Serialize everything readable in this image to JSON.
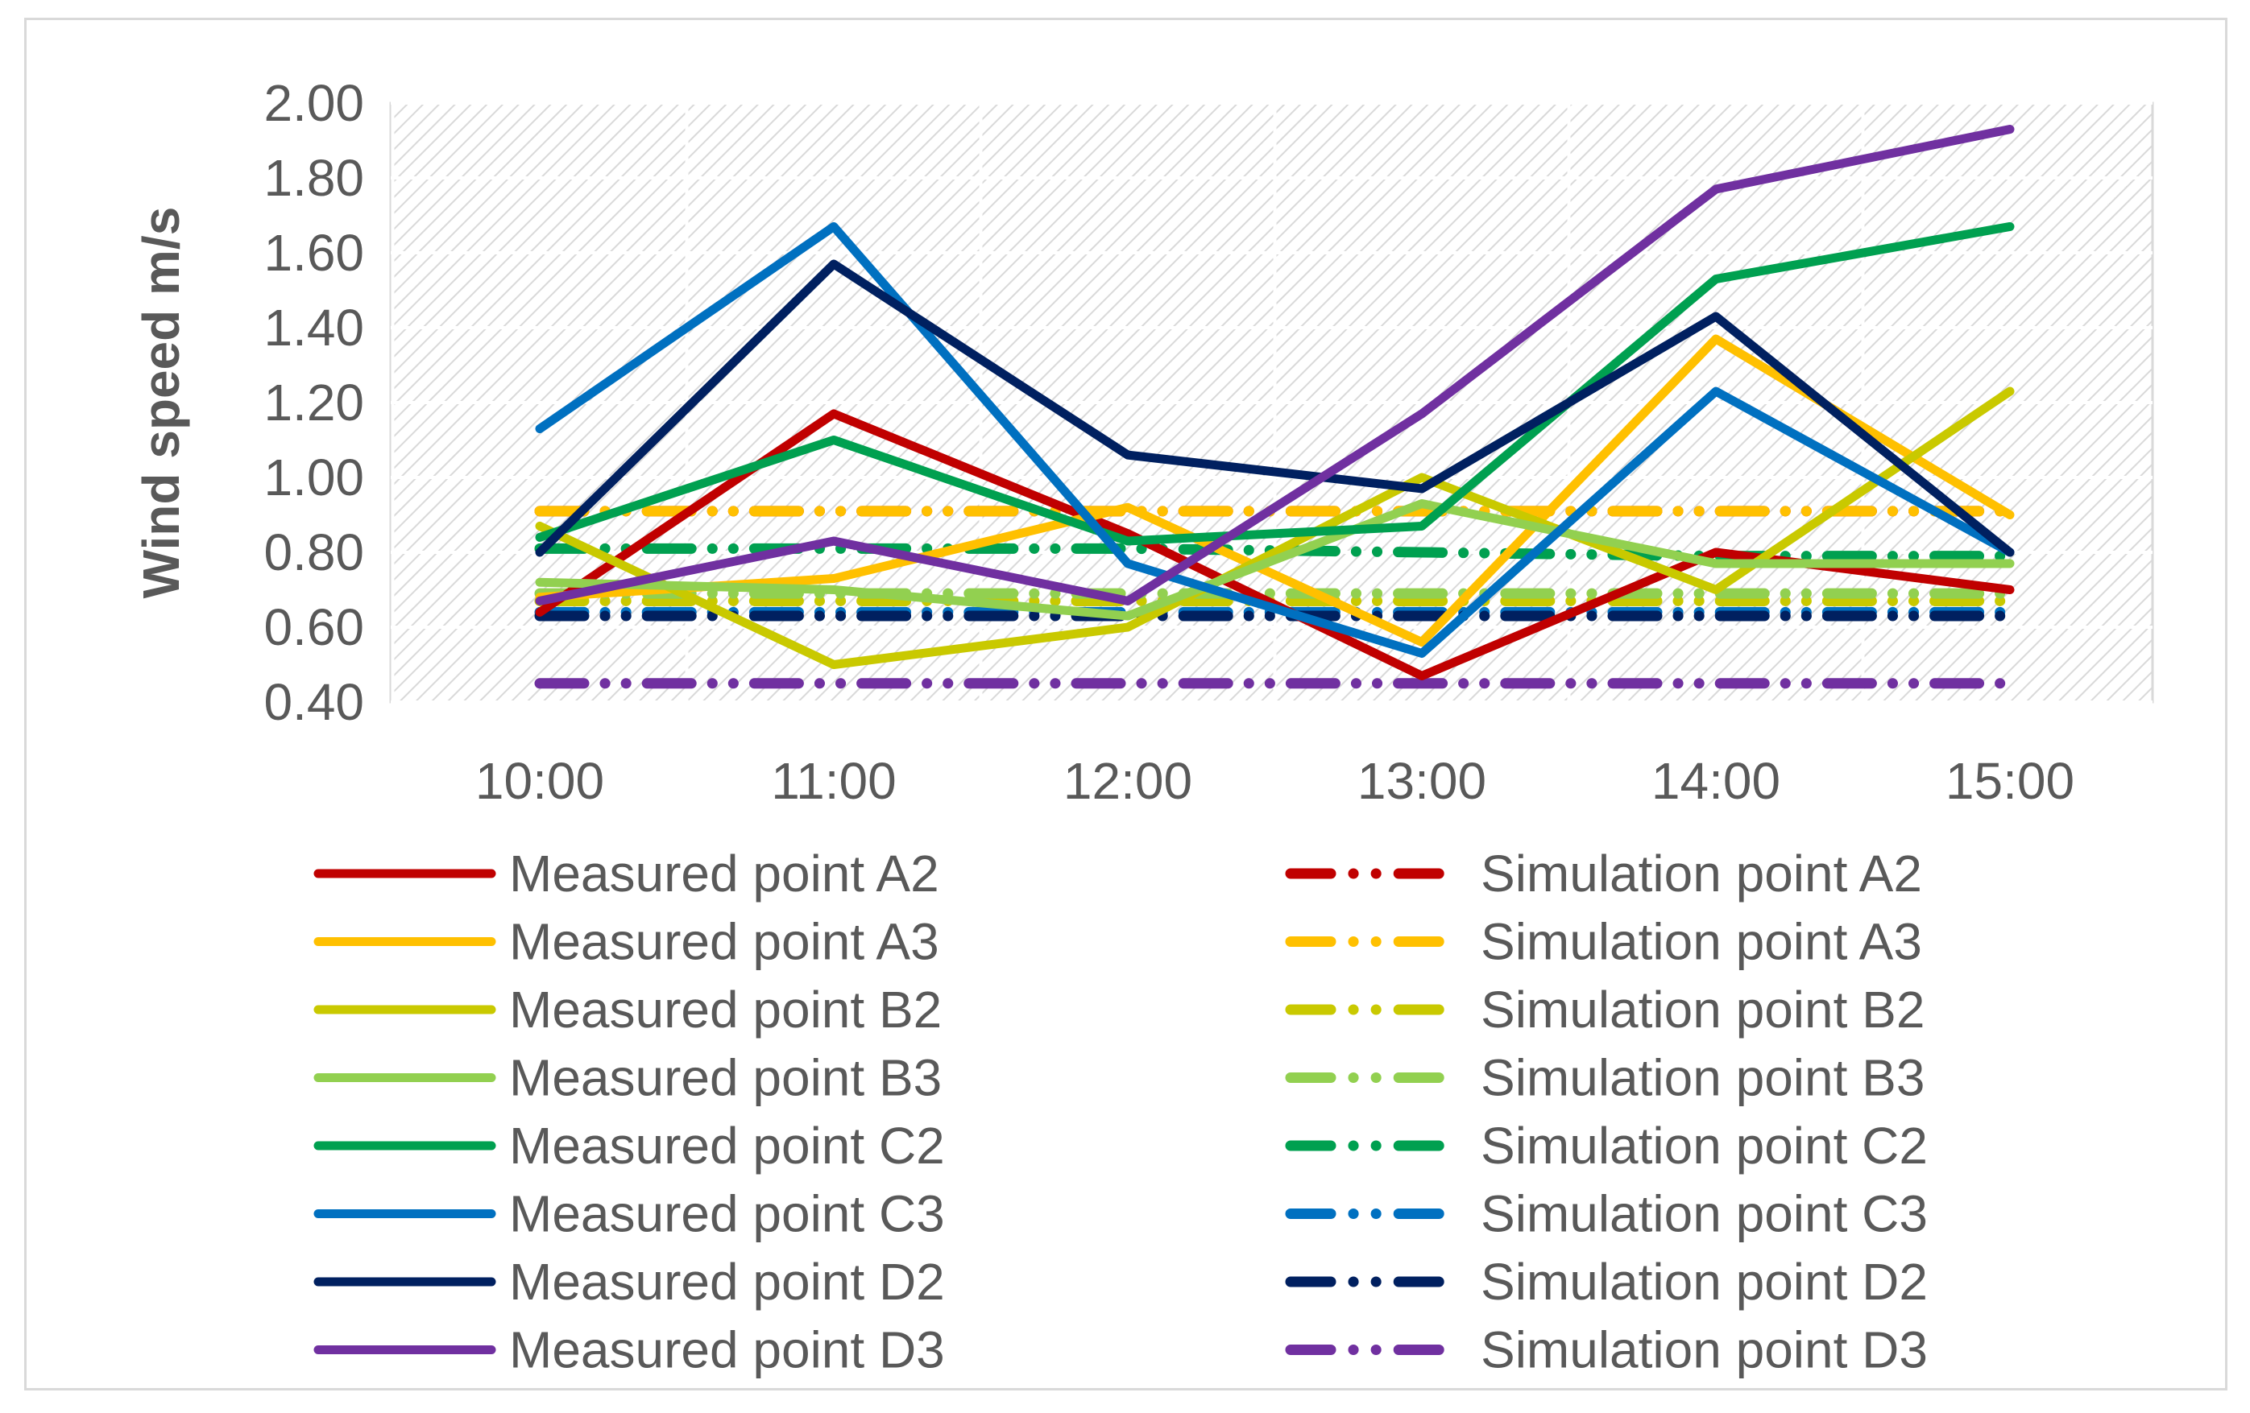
{
  "chart_data": {
    "type": "line",
    "title": "",
    "xlabel": "",
    "ylabel": "Wind speed m/s",
    "ylim": [
      0.4,
      2.0
    ],
    "yticks": [
      "0.40",
      "0.60",
      "0.80",
      "1.00",
      "1.20",
      "1.40",
      "1.60",
      "1.80",
      "2.00"
    ],
    "categories": [
      "10:00",
      "11:00",
      "12:00",
      "13:00",
      "14:00",
      "15:00"
    ],
    "grid": true,
    "legend_position": "bottom",
    "series": [
      {
        "name": "Measured point A2",
        "kind": "measured",
        "color": "#c00000",
        "values": [
          0.64,
          1.17,
          0.85,
          0.47,
          0.8,
          0.7
        ]
      },
      {
        "name": "Simulation point A2",
        "kind": "simulation",
        "color": "#c00000",
        "values": [
          0.91,
          0.91,
          0.91,
          0.91,
          0.91,
          0.91
        ]
      },
      {
        "name": "Measured point A3",
        "kind": "measured",
        "color": "#ffc000",
        "values": [
          0.68,
          0.73,
          0.92,
          0.56,
          1.37,
          0.9
        ]
      },
      {
        "name": "Simulation point A3",
        "kind": "simulation",
        "color": "#ffc000",
        "values": [
          0.91,
          0.91,
          0.91,
          0.91,
          0.91,
          0.91
        ]
      },
      {
        "name": "Measured point B2",
        "kind": "measured",
        "color": "#c9c900",
        "values": [
          0.87,
          0.5,
          0.6,
          1.0,
          0.7,
          1.23
        ]
      },
      {
        "name": "Simulation point B2",
        "kind": "simulation",
        "color": "#c9c900",
        "values": [
          0.67,
          0.67,
          0.67,
          0.67,
          0.67,
          0.67
        ]
      },
      {
        "name": "Measured point B3",
        "kind": "measured",
        "color": "#92d050",
        "values": [
          0.72,
          0.7,
          0.63,
          0.93,
          0.77,
          0.77
        ]
      },
      {
        "name": "Simulation point B3",
        "kind": "simulation",
        "color": "#92d050",
        "values": [
          0.69,
          0.69,
          0.69,
          0.69,
          0.69,
          0.69
        ]
      },
      {
        "name": "Measured point C2",
        "kind": "measured",
        "color": "#00a050",
        "values": [
          0.84,
          1.1,
          0.83,
          0.87,
          1.53,
          1.67
        ]
      },
      {
        "name": "Simulation point C2",
        "kind": "simulation",
        "color": "#00a050",
        "values": [
          0.81,
          0.81,
          0.81,
          0.8,
          0.79,
          0.79
        ]
      },
      {
        "name": "Measured point C3",
        "kind": "measured",
        "color": "#0070c0",
        "values": [
          1.13,
          1.67,
          0.77,
          0.53,
          1.23,
          0.8
        ]
      },
      {
        "name": "Simulation point C3",
        "kind": "simulation",
        "color": "#0070c0",
        "values": [
          0.64,
          0.64,
          0.64,
          0.64,
          0.64,
          0.64
        ]
      },
      {
        "name": "Measured point D2",
        "kind": "measured",
        "color": "#002060",
        "values": [
          0.8,
          1.57,
          1.06,
          0.97,
          1.43,
          0.8
        ]
      },
      {
        "name": "Simulation point D2",
        "kind": "simulation",
        "color": "#002060",
        "values": [
          0.63,
          0.63,
          0.63,
          0.63,
          0.63,
          0.63
        ]
      },
      {
        "name": "Measured point D3",
        "kind": "measured",
        "color": "#7030a0",
        "values": [
          0.67,
          0.83,
          0.67,
          1.17,
          1.77,
          1.93
        ]
      },
      {
        "name": "Simulation point D3",
        "kind": "simulation",
        "color": "#7030a0",
        "values": [
          0.45,
          0.45,
          0.45,
          0.45,
          0.45,
          0.45
        ]
      }
    ]
  }
}
